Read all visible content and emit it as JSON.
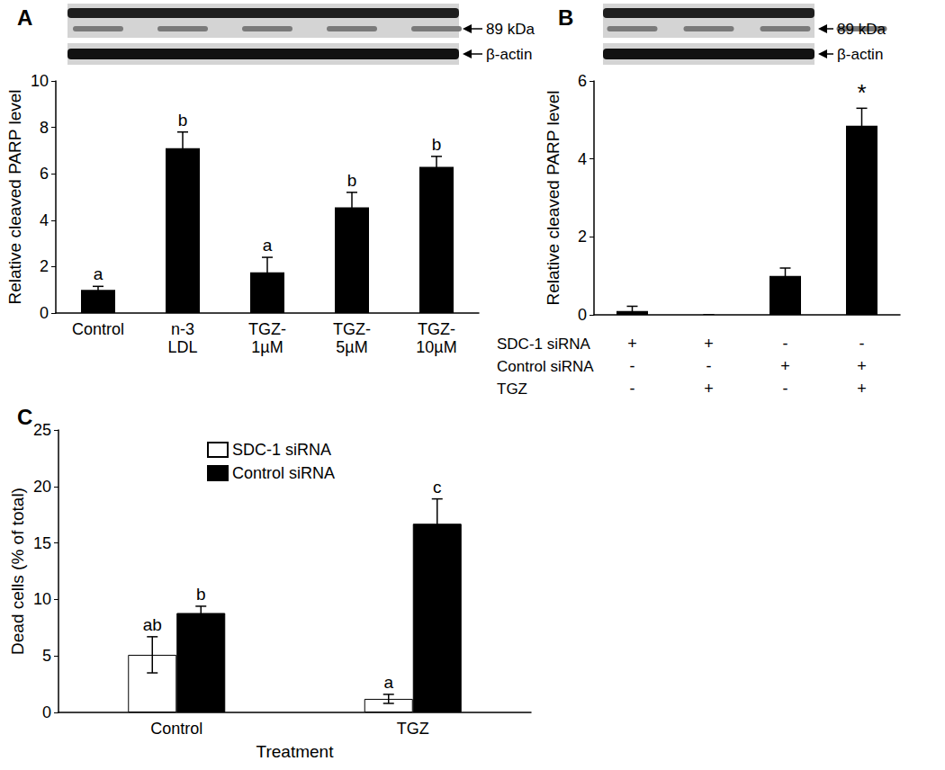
{
  "chart_data": [
    {
      "type": "bar",
      "title": "A",
      "categories": [
        "Control",
        "n-3\nLDL",
        "TGZ-\n1µM",
        "TGZ-\n5µM",
        "TGZ-\n10µM"
      ],
      "values": [
        1,
        7.1,
        1.75,
        4.55,
        6.3
      ],
      "errors": [
        0.15,
        0.7,
        0.65,
        0.65,
        0.45
      ],
      "letters": [
        "a",
        "b",
        "a",
        "b",
        "b"
      ],
      "color": "#000000",
      "y_label": "Relative cleaved PARP level",
      "ylim": [
        0,
        10
      ],
      "yticks": [
        0,
        2,
        4,
        6,
        8,
        10
      ],
      "grid": false,
      "annotations": [
        "89 kDa",
        "β-actin"
      ]
    },
    {
      "type": "bar",
      "title": "B",
      "categories": [
        null,
        null,
        null,
        null
      ],
      "values": [
        0.1,
        0,
        1,
        4.85
      ],
      "errors": [
        0.12,
        0,
        0.2,
        0.45
      ],
      "letters": [
        null,
        null,
        null,
        "*"
      ],
      "color": "#000000",
      "y_label": "Relative cleaved PARP level",
      "ylim": [
        0,
        6
      ],
      "yticks": [
        0,
        2,
        4,
        6
      ],
      "grid": false,
      "tick_labels": "y",
      "conditions": [
        {
          "label": "SDC-1 siRNA",
          "values": [
            "+",
            "+",
            "-",
            "-"
          ]
        },
        {
          "label": "Control siRNA",
          "values": [
            "-",
            "-",
            "+",
            "+"
          ]
        },
        {
          "label": "TGZ",
          "values": [
            "-",
            "+",
            "-",
            "+"
          ]
        }
      ],
      "annotations": [
        "89 kDa",
        "β-actin"
      ]
    },
    {
      "type": "bar",
      "title": "C",
      "categories": [
        "Control",
        "TGZ"
      ],
      "x_label": "Treatment",
      "y_label": "Dead cells (% of total)",
      "series": [
        {
          "name": "SDC-1 siRNA",
          "color": "#ffffff",
          "values": [
            5.1,
            1.2
          ],
          "errors": [
            1.6,
            0.4
          ],
          "letters": [
            "ab",
            "a"
          ]
        },
        {
          "name": "Control siRNA",
          "color": "#000000",
          "values": [
            8.8,
            16.7
          ],
          "errors": [
            0.6,
            2.2
          ],
          "letters": [
            "b",
            "c"
          ]
        }
      ],
      "ylim": [
        0,
        25
      ],
      "yticks": [
        0,
        5,
        10,
        15,
        20,
        25
      ],
      "grid": false,
      "legend": "upper left"
    }
  ]
}
